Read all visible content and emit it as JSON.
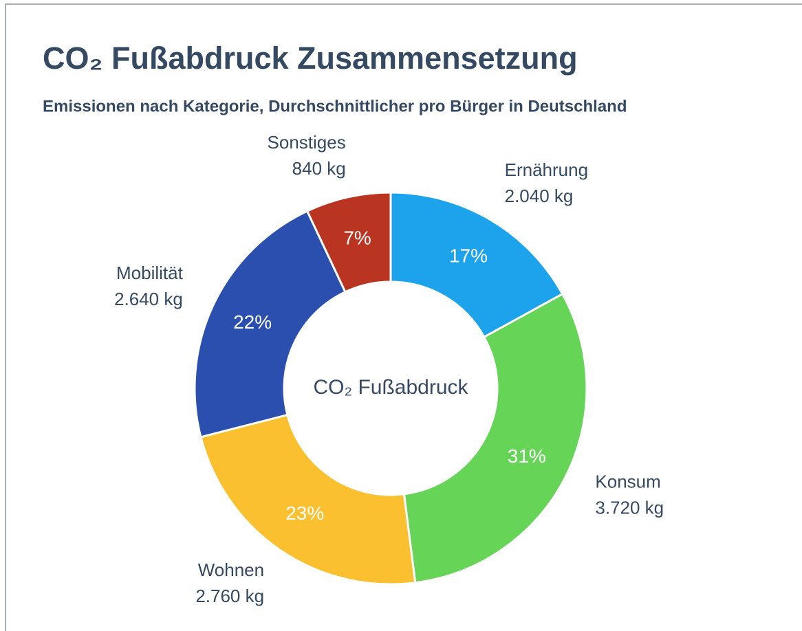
{
  "chart_data": {
    "type": "donut",
    "title": "CO₂ Fußabdruck Zusammensetzung",
    "subtitle": "Emissionen nach Kategorie, Durchschnittlicher pro Bürger in Deutschland",
    "center_label": "CO₂ Fußabdruck",
    "categories": [
      "Ernährung",
      "Konsum",
      "Wohnen",
      "Mobilität",
      "Sonstiges"
    ],
    "values": [
      2040,
      3720,
      2760,
      2640,
      840
    ],
    "value_labels": [
      "2.040 kg",
      "3.720 kg",
      "2.760 kg",
      "2.640 kg",
      "840 kg"
    ],
    "percent_labels": [
      "17%",
      "31%",
      "23%",
      "22%",
      "7%"
    ],
    "colors": [
      "#1ca3ec",
      "#66d457",
      "#fbc02f",
      "#2b4fae",
      "#b93521"
    ]
  }
}
